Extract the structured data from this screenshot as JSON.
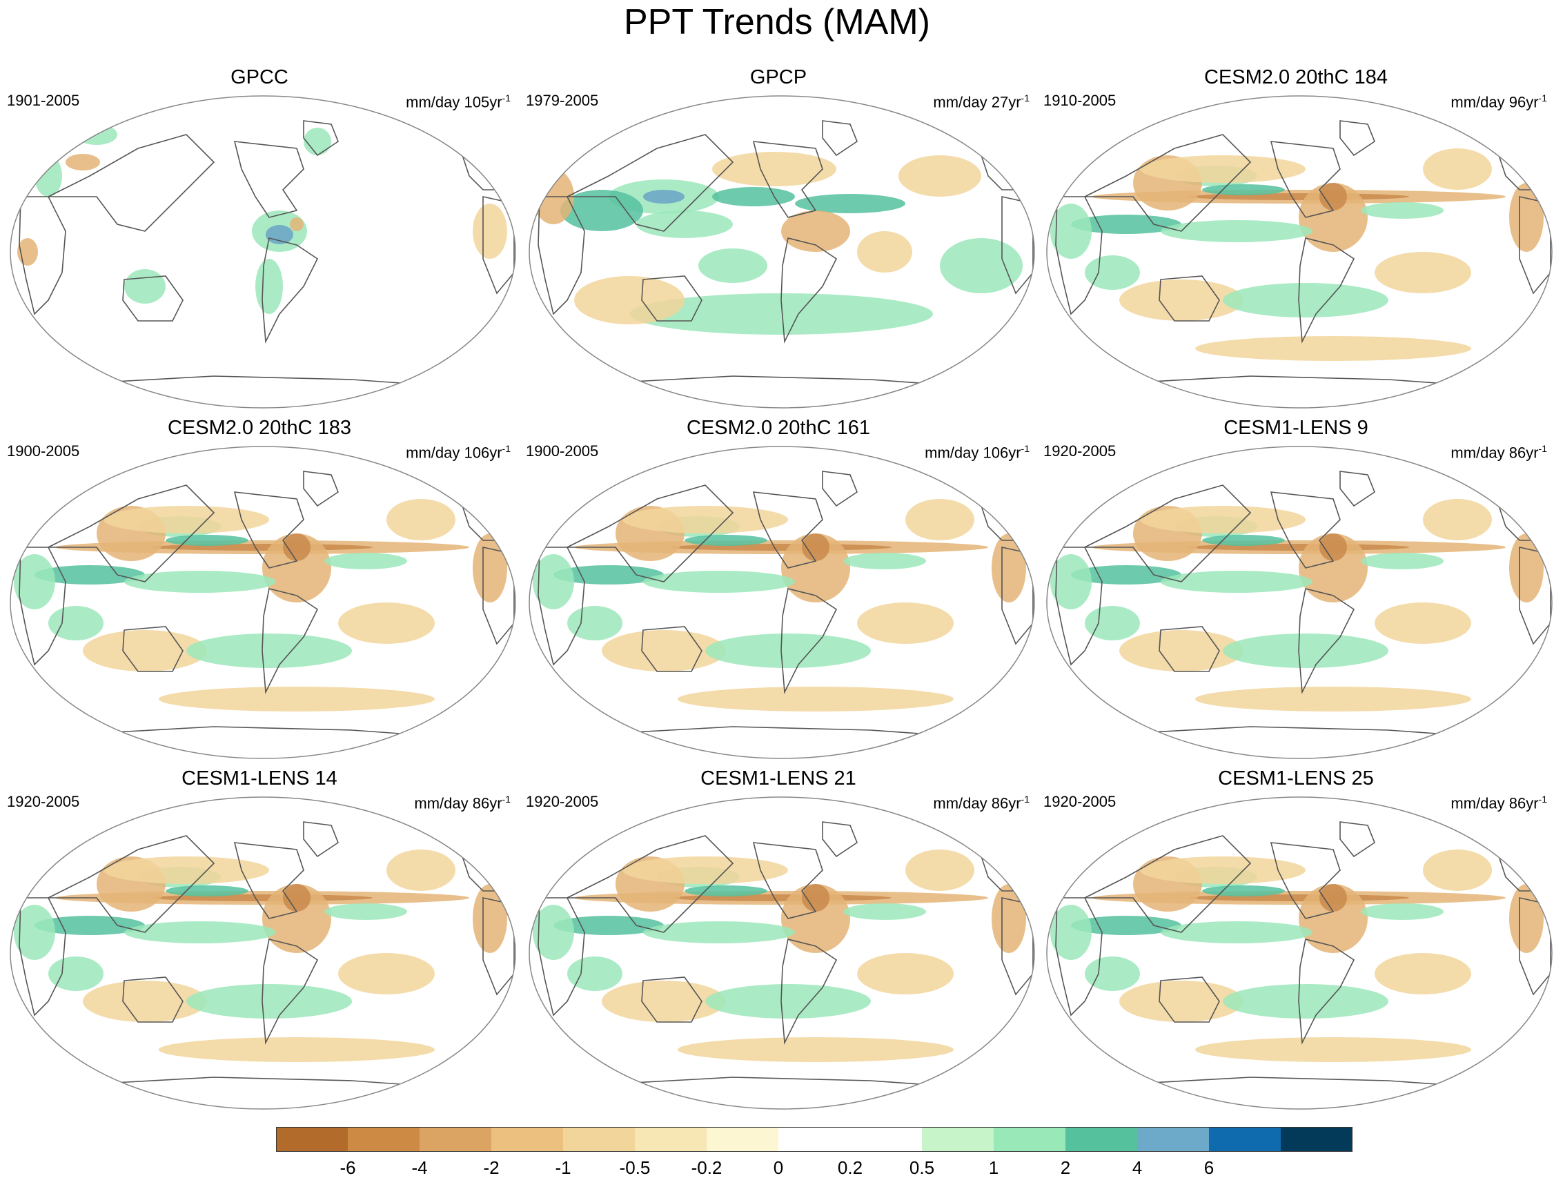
{
  "title": "PPT Trends (MAM)",
  "panels": [
    {
      "title": "GPCC",
      "period": "1901-2005",
      "units": "mm/day 105yr",
      "exp": "-1",
      "pattern": "gpcc"
    },
    {
      "title": "GPCP",
      "period": "1979-2005",
      "units": "mm/day 27yr",
      "exp": "-1",
      "pattern": "gpcp"
    },
    {
      "title": "CESM2.0 20thC 184",
      "period": "1910-2005",
      "units": "mm/day 96yr",
      "exp": "-1",
      "pattern": "model"
    },
    {
      "title": "CESM2.0 20thC 183",
      "period": "1900-2005",
      "units": "mm/day 106yr",
      "exp": "-1",
      "pattern": "model"
    },
    {
      "title": "CESM2.0 20thC 161",
      "period": "1900-2005",
      "units": "mm/day 106yr",
      "exp": "-1",
      "pattern": "model"
    },
    {
      "title": "CESM1-LENS 9",
      "period": "1920-2005",
      "units": "mm/day 86yr",
      "exp": "-1",
      "pattern": "model"
    },
    {
      "title": "CESM1-LENS 14",
      "period": "1920-2005",
      "units": "mm/day 86yr",
      "exp": "-1",
      "pattern": "model"
    },
    {
      "title": "CESM1-LENS 21",
      "period": "1920-2005",
      "units": "mm/day 86yr",
      "exp": "-1",
      "pattern": "model"
    },
    {
      "title": "CESM1-LENS 25",
      "period": "1920-2005",
      "units": "mm/day 86yr",
      "exp": "-1",
      "pattern": "model"
    }
  ],
  "colorbar": {
    "labels": [
      "-6",
      "-4",
      "-2",
      "-1",
      "-0.5",
      "-0.2",
      "0",
      "0.2",
      "0.5",
      "1",
      "2",
      "4",
      "6"
    ],
    "colors": [
      "#b26b2b",
      "#cc8a45",
      "#dba463",
      "#ecc07e",
      "#f2d59b",
      "#f6e7b4",
      "#fdf6d3",
      "#ffffff",
      "#ffffff",
      "#c7f4c8",
      "#98e8b8",
      "#55c19d",
      "#6da9c8",
      "#0f6aae",
      "#033a5a"
    ]
  },
  "map_colors": {
    "dry": "#e4b475",
    "dry_strong": "#c98a4c",
    "moist": "#f2d59b",
    "wet": "#9be8bb",
    "wet_strong": "#55c19d",
    "wettest": "#6aa2c6",
    "coast": "#555555",
    "border": "#888888"
  }
}
